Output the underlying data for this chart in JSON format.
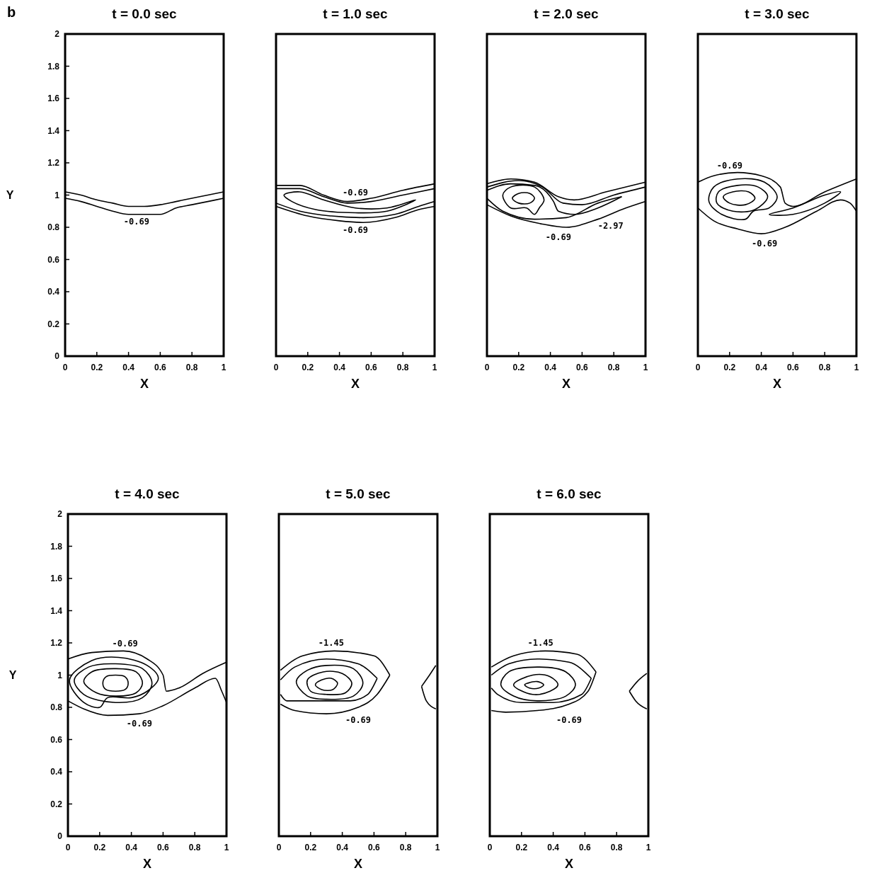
{
  "chart_data": [
    {
      "type": "line",
      "title": "t = 0.0 sec",
      "xlabel": "X",
      "ylabel": "Y",
      "xlim": [
        0,
        1
      ],
      "ylim": [
        0,
        2
      ],
      "xticks": [
        0,
        0.2,
        0.4,
        0.6,
        0.8,
        1
      ],
      "yticks": [
        0,
        0.2,
        0.4,
        0.6,
        0.8,
        1,
        1.2,
        1.4,
        1.6,
        1.8,
        2
      ],
      "annotations": [
        "b",
        "-0.69"
      ],
      "series": [
        {
          "color": "#000000",
          "x": [
            0,
            0.1,
            0.2,
            0.3,
            0.4,
            0.5,
            0.6,
            0.7,
            0.8,
            0.9,
            1
          ],
          "values": [
            1.02,
            1,
            0.97,
            0.95,
            0.93,
            0.93,
            0.94,
            0.96,
            0.98,
            1,
            1.02
          ]
        },
        {
          "color": "#000000",
          "x": [
            0,
            0.1,
            0.2,
            0.3,
            0.4,
            0.5,
            0.6,
            0.7,
            0.8,
            0.9,
            1
          ],
          "values": [
            0.98,
            0.96,
            0.93,
            0.9,
            0.88,
            0.88,
            0.88,
            0.92,
            0.94,
            0.96,
            0.98
          ]
        }
      ]
    },
    {
      "type": "line",
      "title": "t = 1.0 sec",
      "xlabel": "X",
      "xlim": [
        0,
        1
      ],
      "ylim": [
        0,
        2
      ],
      "xticks": [
        0,
        0.2,
        0.4,
        0.6,
        0.8,
        1
      ],
      "tick_labels": "x",
      "annotations": [
        "-0.69",
        "-0.69"
      ],
      "series": [
        {
          "color": "#000000",
          "x": [
            0,
            0.15,
            0.3,
            0.45,
            0.6,
            0.8,
            1
          ],
          "values": [
            1.06,
            1.06,
            1,
            0.96,
            0.98,
            1.03,
            1.07
          ]
        },
        {
          "color": "#000000",
          "x": [
            0,
            0.15,
            0.3,
            0.45,
            0.6,
            0.8,
            1
          ],
          "values": [
            1.04,
            1.04,
            0.99,
            0.95,
            0.96,
            1,
            1.04
          ]
        },
        {
          "color": "#000000",
          "x": [
            0,
            0.15,
            0.35,
            0.55,
            0.75,
            0.9,
            1
          ],
          "values": [
            0.95,
            0.9,
            0.87,
            0.86,
            0.88,
            0.93,
            0.96
          ]
        },
        {
          "color": "#000000",
          "x": [
            0,
            0.2,
            0.4,
            0.55,
            0.75,
            0.9,
            1
          ],
          "values": [
            0.93,
            0.87,
            0.84,
            0.83,
            0.86,
            0.91,
            0.93
          ]
        }
      ]
    },
    {
      "type": "line",
      "title": "t = 2.0 sec",
      "xlabel": "X",
      "xlim": [
        0,
        1
      ],
      "ylim": [
        0,
        2
      ],
      "xticks": [
        0,
        0.2,
        0.4,
        0.6,
        0.8,
        1
      ],
      "tick_labels": "x",
      "annotations": [
        "-2.97",
        "-0.69"
      ],
      "series": [
        {
          "color": "#000000",
          "x": [
            0,
            0.15,
            0.3,
            0.42,
            0.45,
            0.55,
            0.7,
            0.85
          ],
          "values": [
            1.03,
            1.07,
            1.06,
            0.96,
            0.9,
            0.88,
            0.92,
            0.99
          ]
        },
        {
          "color": "#000000",
          "x": [
            0,
            0.1,
            0.3,
            0.5,
            0.7,
            0.85
          ],
          "values": [
            0.98,
            0.9,
            0.85,
            0.86,
            0.95,
            0.99
          ]
        },
        {
          "color": "#000000",
          "x": [
            0,
            0.2,
            0.35,
            0.48,
            0.6,
            0.8,
            1
          ],
          "values": [
            1.05,
            1.09,
            1.05,
            0.95,
            0.94,
            1,
            1.05
          ]
        },
        {
          "color": "#000000",
          "x": [
            0,
            0.15,
            0.3,
            0.45,
            0.55,
            0.75,
            1
          ],
          "values": [
            1.07,
            1.1,
            1.08,
            0.99,
            0.97,
            1.02,
            1.08
          ]
        },
        {
          "color": "#000000",
          "x": [
            0,
            0.15,
            0.35,
            0.5,
            0.7,
            0.85,
            1
          ],
          "values": [
            0.94,
            0.87,
            0.82,
            0.8,
            0.85,
            0.91,
            0.96
          ]
        }
      ]
    },
    {
      "type": "line",
      "title": "t = 3.0 sec",
      "xlabel": "X",
      "xlim": [
        0,
        1
      ],
      "ylim": [
        0,
        2
      ],
      "xticks": [
        0,
        0.2,
        0.4,
        0.6,
        0.8,
        1
      ],
      "tick_labels": "x",
      "annotations": [
        "-0.69",
        "-0.69"
      ],
      "series": [
        {
          "color": "#000000",
          "x": [
            0,
            0.1,
            0.25,
            0.4,
            0.52,
            0.55,
            0.6,
            0.8,
            1
          ],
          "values": [
            1.08,
            1.12,
            1.14,
            1.12,
            1.05,
            0.95,
            0.93,
            1.02,
            1.1
          ]
        },
        {
          "color": "#000000",
          "x": [
            0,
            0.1,
            0.25,
            0.4,
            0.55,
            0.75,
            0.9,
            0.96,
            1
          ],
          "values": [
            0.92,
            0.84,
            0.79,
            0.76,
            0.8,
            0.9,
            0.97,
            0.95,
            0.9
          ]
        }
      ]
    },
    {
      "type": "line",
      "title": "t = 4.0 sec",
      "xlabel": "X",
      "ylabel": "Y",
      "xlim": [
        0,
        1
      ],
      "ylim": [
        0,
        2
      ],
      "xticks": [
        0,
        0.2,
        0.4,
        0.6,
        0.8,
        1
      ],
      "yticks": [
        0,
        0.2,
        0.4,
        0.6,
        0.8,
        1,
        1.2,
        1.4,
        1.6,
        1.8,
        2
      ],
      "annotations": [
        "-0.69",
        "-0.69"
      ],
      "series": [
        {
          "color": "#000000",
          "x": [
            0,
            0.15,
            0.35,
            0.5,
            0.6,
            0.62,
            0.7,
            0.85,
            1
          ],
          "values": [
            1.1,
            1.14,
            1.15,
            1.1,
            1,
            0.9,
            0.92,
            1.01,
            1.08
          ]
        },
        {
          "color": "#000000",
          "x": [
            0,
            0.1,
            0.25,
            0.45,
            0.6,
            0.8,
            0.93,
            0.97,
            1
          ],
          "values": [
            0.84,
            0.79,
            0.75,
            0.76,
            0.81,
            0.92,
            0.98,
            0.9,
            0.83
          ]
        }
      ]
    },
    {
      "type": "line",
      "title": "t = 5.0 sec",
      "xlabel": "X",
      "xlim": [
        0,
        1
      ],
      "ylim": [
        0,
        2
      ],
      "xticks": [
        0,
        0.2,
        0.4,
        0.6,
        0.8,
        1
      ],
      "tick_labels": "x",
      "annotations": [
        "-1.45",
        "-0.69"
      ],
      "series": [
        {
          "color": "#000000",
          "x": [
            0.01,
            0.1,
            0.3,
            0.5,
            0.62
          ],
          "values": [
            0.97,
            1.05,
            1.1,
            1.07,
            0.98
          ]
        },
        {
          "color": "#000000",
          "x": [
            0.01,
            0.05,
            0.2,
            0.45,
            0.56,
            0.62
          ],
          "values": [
            0.88,
            0.84,
            0.84,
            0.84,
            0.88,
            0.98
          ]
        },
        {
          "color": "#000000",
          "x": [
            0.01,
            0.15,
            0.35,
            0.6,
            0.7
          ],
          "values": [
            1.03,
            1.12,
            1.15,
            1.12,
            1
          ]
        },
        {
          "color": "#000000",
          "x": [
            0.01,
            0.1,
            0.3,
            0.5,
            0.62,
            0.7
          ],
          "values": [
            0.82,
            0.78,
            0.76,
            0.8,
            0.88,
            1
          ]
        },
        {
          "color": "#000000",
          "x": [
            0.9,
            0.95,
            0.99
          ],
          "values": [
            0.93,
            1,
            1.06
          ]
        },
        {
          "color": "#000000",
          "x": [
            0.9,
            0.93,
            0.99
          ],
          "values": [
            0.93,
            0.84,
            0.79
          ]
        }
      ]
    },
    {
      "type": "line",
      "title": "t = 6.0 sec",
      "xlabel": "X",
      "xlim": [
        0,
        1
      ],
      "ylim": [
        0,
        2
      ],
      "xticks": [
        0,
        0.2,
        0.4,
        0.6,
        0.8,
        1
      ],
      "tick_labels": "x",
      "annotations": [
        "-1.45",
        "-0.69"
      ],
      "series": [
        {
          "color": "#000000",
          "x": [
            0.01,
            0.12,
            0.3,
            0.5,
            0.64
          ],
          "values": [
            1,
            1.07,
            1.1,
            1.08,
            0.98
          ]
        },
        {
          "color": "#000000",
          "x": [
            0.01,
            0.05,
            0.2,
            0.4,
            0.58,
            0.64
          ],
          "values": [
            0.92,
            0.88,
            0.83,
            0.83,
            0.88,
            0.98
          ]
        },
        {
          "color": "#000000",
          "x": [
            0.01,
            0.15,
            0.35,
            0.55,
            0.67
          ],
          "values": [
            1.05,
            1.12,
            1.15,
            1.13,
            1.02
          ]
        },
        {
          "color": "#000000",
          "x": [
            0.01,
            0.1,
            0.3,
            0.5,
            0.62,
            0.67
          ],
          "values": [
            0.78,
            0.77,
            0.78,
            0.82,
            0.9,
            1.02
          ]
        },
        {
          "color": "#000000",
          "x": [
            0.88,
            0.93,
            0.99
          ],
          "values": [
            0.9,
            0.96,
            1.01
          ]
        },
        {
          "color": "#000000",
          "x": [
            0.88,
            0.92,
            0.99
          ],
          "values": [
            0.9,
            0.84,
            0.79
          ]
        }
      ]
    }
  ]
}
